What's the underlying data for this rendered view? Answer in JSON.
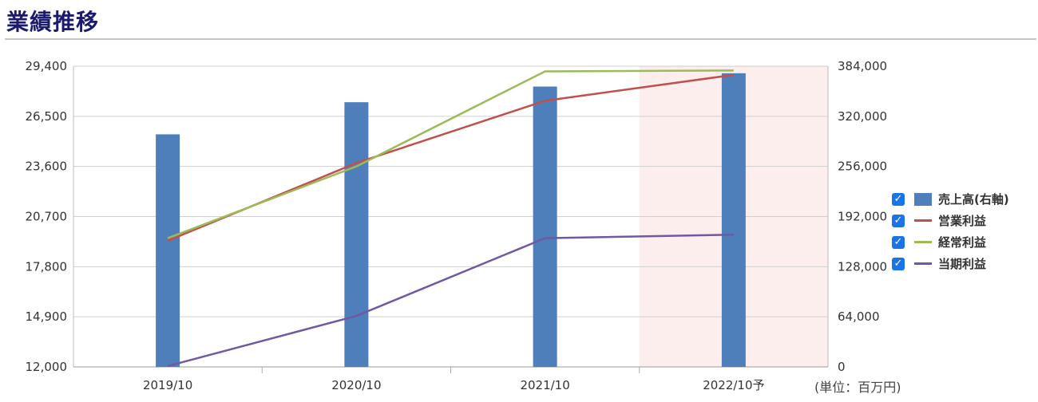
{
  "heading": "業績推移",
  "unit_label": "(単位：百万円)",
  "colors": {
    "sales": "#4f7fbb",
    "operating": "#c0504d",
    "ordinary": "#9bbb59",
    "net": "#7058a3",
    "forecast_band": "#fdeeee",
    "checkbox": "#1a73e8"
  },
  "chart_data": {
    "type": "bar",
    "categories": [
      "2019/10",
      "2020/10",
      "2021/10",
      "2022/10予"
    ],
    "forecast_category": "2022/10予",
    "left_axis": {
      "range": [
        12000,
        29400
      ],
      "ticks": [
        "29,400",
        "26,500",
        "23,600",
        "20,700",
        "17,800",
        "14,900",
        "12,000"
      ],
      "tick_values": [
        29400,
        26500,
        23600,
        20700,
        17800,
        14900,
        12000
      ]
    },
    "right_axis": {
      "range": [
        0,
        384000
      ],
      "ticks": [
        "384,000",
        "320,000",
        "256,000",
        "192,000",
        "128,000",
        "64,000",
        "0"
      ],
      "tick_values": [
        384000,
        320000,
        256000,
        192000,
        128000,
        64000,
        0
      ]
    },
    "series": [
      {
        "key": "sales",
        "name": "売上高(右軸)",
        "type": "bar",
        "axis": "right",
        "checked": true,
        "values": [
          297000,
          338000,
          358000,
          375000
        ]
      },
      {
        "key": "operating",
        "name": "営業利益",
        "type": "line",
        "axis": "left",
        "checked": true,
        "values": [
          19300,
          23800,
          27400,
          28900
        ]
      },
      {
        "key": "ordinary",
        "name": "経常利益",
        "type": "line",
        "axis": "left",
        "checked": true,
        "values": [
          19450,
          23600,
          29100,
          29150
        ]
      },
      {
        "key": "net",
        "name": "当期利益",
        "type": "line",
        "axis": "left",
        "checked": true,
        "values": [
          12050,
          14950,
          19450,
          19650
        ]
      }
    ]
  }
}
